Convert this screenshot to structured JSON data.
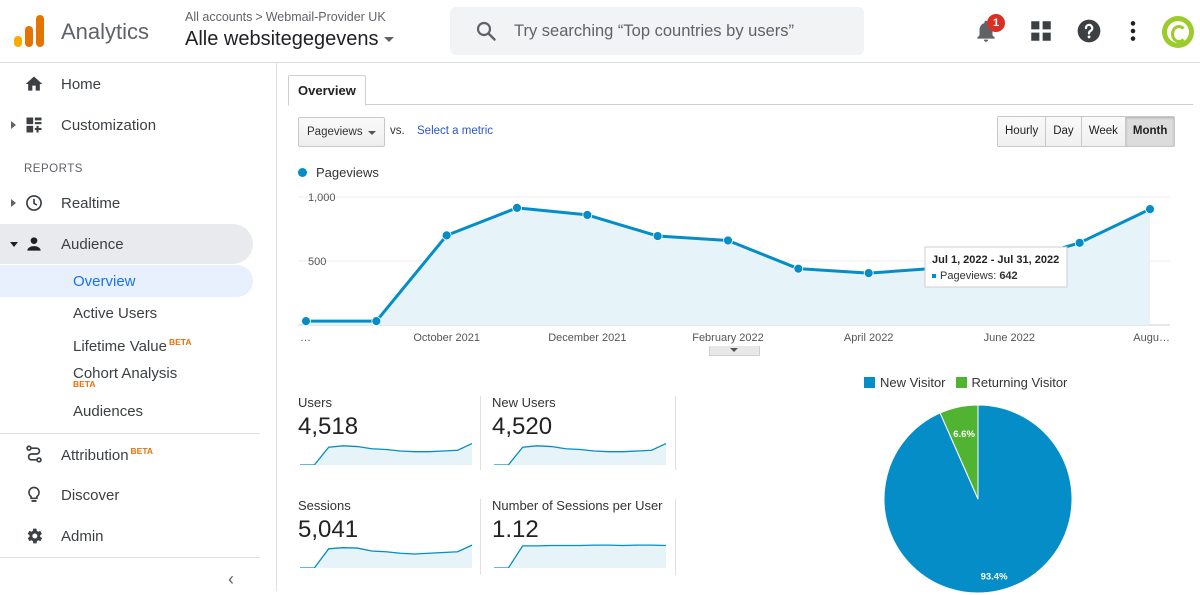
{
  "header": {
    "app_name": "Analytics",
    "breadcrumb_accounts": "All accounts",
    "breadcrumb_sep": ">",
    "breadcrumb_account": "Webmail-Provider UK",
    "property_name": "Alle websitegegevens",
    "search_placeholder": "Try searching “Top countries by users”",
    "notification_count": "1"
  },
  "sidebar": {
    "home": "Home",
    "customization": "Customization",
    "reports_header": "REPORTS",
    "realtime": "Realtime",
    "audience": "Audience",
    "audience_items": {
      "overview": "Overview",
      "active_users": "Active Users",
      "lifetime_value": "Lifetime Value",
      "cohort_analysis": "Cohort Analysis",
      "audiences": "Audiences"
    },
    "beta_label": "BETA",
    "attribution": "Attribution",
    "discover": "Discover",
    "admin": "Admin",
    "collapse": "‹"
  },
  "main": {
    "tab_overview": "Overview",
    "metric_select": "Pageviews",
    "vs_label": "vs.",
    "select_metric": "Select a metric",
    "granularity": [
      "Hourly",
      "Day",
      "Week",
      "Month"
    ],
    "granularity_selected": "Month",
    "legend_label": "Pageviews",
    "tooltip": {
      "range": "Jul 1, 2022 - Jul 31, 2022",
      "metric": "Pageviews:",
      "value": "642"
    }
  },
  "chart_data": [
    {
      "type": "area",
      "series": [
        {
          "name": "Pageviews",
          "values": [
            30,
            30,
            700,
            915,
            860,
            695,
            660,
            440,
            405,
            445,
            480,
            642,
            905
          ]
        }
      ],
      "x_tick_labels": [
        "…",
        "October 2021",
        "December 2021",
        "February 2022",
        "April 2022",
        "June 2022",
        "Augu…"
      ],
      "y_tick_labels": [
        "500",
        "1,000"
      ],
      "ylim": [
        0,
        1000
      ],
      "color": "#058dc7",
      "fill": "#e6f3f9",
      "grid": true
    },
    {
      "type": "pie",
      "slices": [
        {
          "name": "New Visitor",
          "value": 93.4,
          "label": "93.4%",
          "color": "#058dc7"
        },
        {
          "name": "Returning Visitor",
          "value": 6.6,
          "label": "6.6%",
          "color": "#50b432"
        }
      ]
    }
  ],
  "metrics": [
    {
      "label": "Users",
      "value": "4,518",
      "spark": [
        0,
        0,
        48,
        52,
        50,
        44,
        42,
        38,
        36,
        36,
        38,
        40,
        58
      ]
    },
    {
      "label": "New Users",
      "value": "4,520",
      "spark": [
        0,
        0,
        48,
        52,
        50,
        44,
        42,
        38,
        36,
        36,
        38,
        40,
        58
      ]
    },
    {
      "label": "Sessions",
      "value": "5,041",
      "spark": [
        0,
        0,
        52,
        55,
        54,
        46,
        44,
        40,
        38,
        40,
        42,
        44,
        62
      ]
    },
    {
      "label": "Number of Sessions per User",
      "value": "1.12",
      "spark": [
        0,
        0,
        60,
        60,
        61,
        61,
        61,
        62,
        62,
        61,
        62,
        62,
        61
      ]
    }
  ]
}
